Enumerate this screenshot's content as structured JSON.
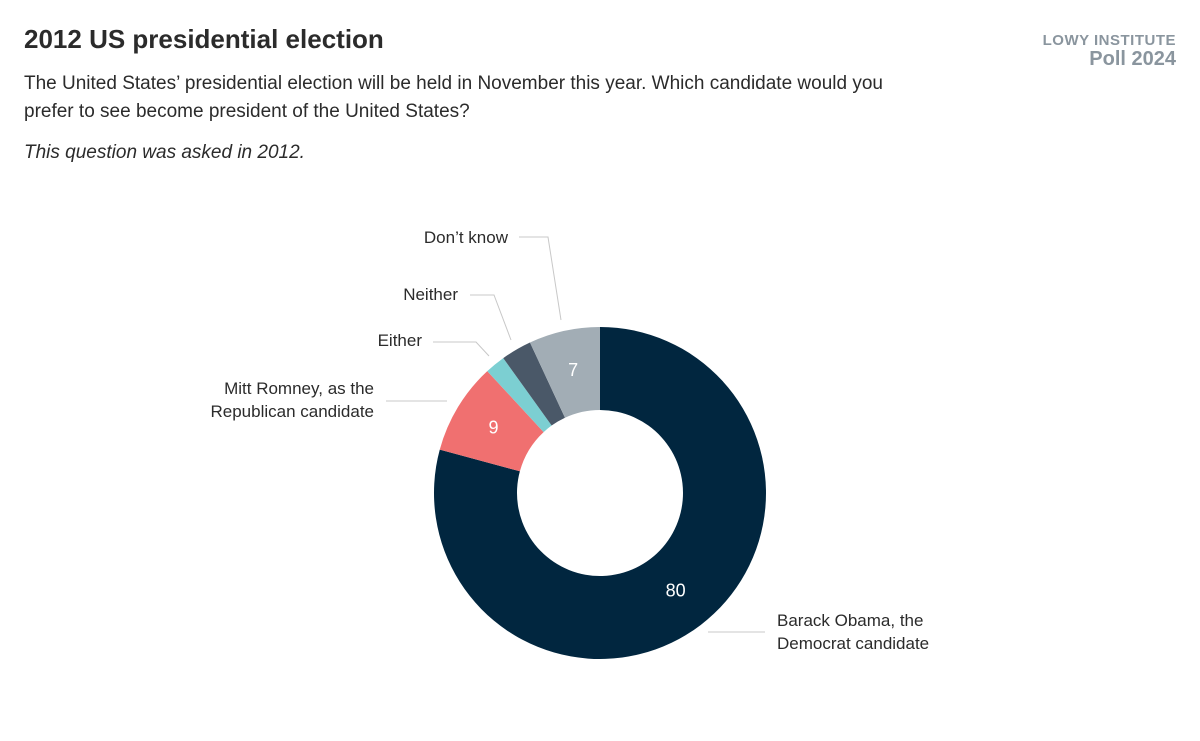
{
  "chart_data": {
    "type": "donut",
    "title": "2012 US presidential election",
    "subtitle": "The United States’ presidential election will be held in November this year. Which candidate would you prefer to see become president of the United States?",
    "note": "This question was asked in 2012.",
    "brand": "LOWY INSTITUTE",
    "brand_subtitle": "Poll 2024",
    "categories": [
      "Barack Obama, the Democrat candidate",
      "Mitt Romney, as the Republican candidate",
      "Either",
      "Neither",
      "Don’t know"
    ],
    "values": [
      80,
      9,
      2,
      3,
      7
    ],
    "value_labels": [
      "80",
      "9",
      null,
      null,
      "7"
    ],
    "colors": [
      "#01263f",
      "#f07070",
      "#7ccfd2",
      "#4a5868",
      "#a2adb5"
    ]
  }
}
